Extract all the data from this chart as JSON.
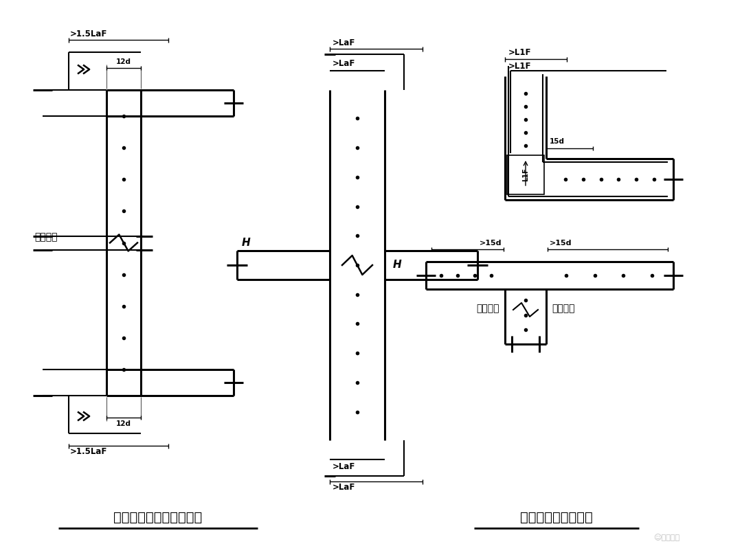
{
  "bg_color": "#ffffff",
  "title1": "墙体竖向钢筋顶底部构造",
  "title2": "墙体水平钢筋锚固图",
  "label_fanghu_wai": "防护区外",
  "label_fanghu_nei": "防护区内",
  "lw_wall": 2.2,
  "lw_bar": 1.5,
  "lw_dim": 1.0,
  "lw_thin": 0.8
}
